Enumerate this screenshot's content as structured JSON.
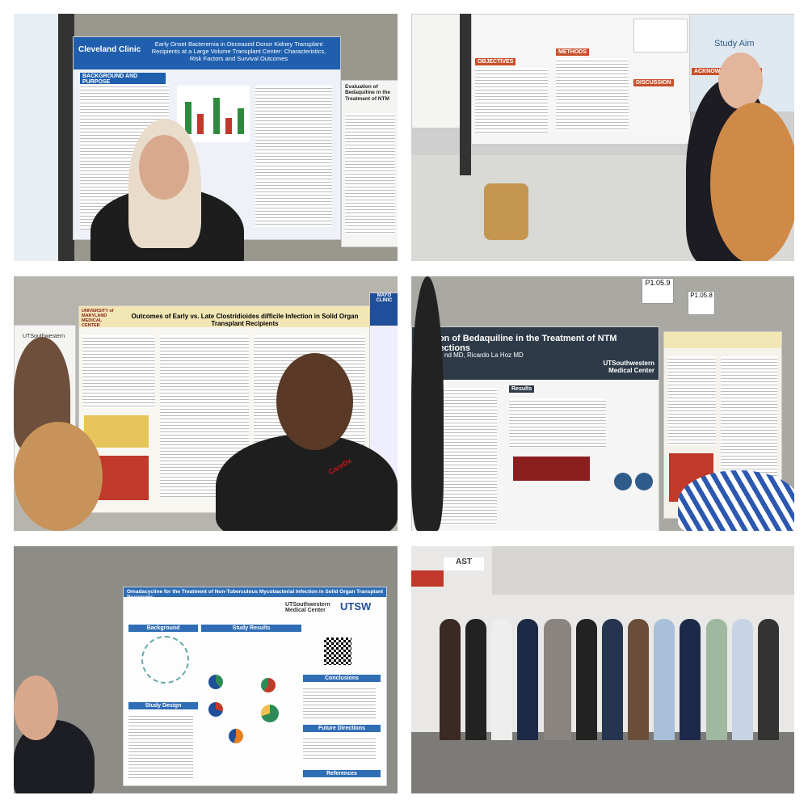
{
  "panels": [
    {
      "texts": {
        "brand": "Cleveland Clinic",
        "title": "Early Onset Bacteremia in Deceased Donor Kidney Transplant Recipients at a Large Volume Transplant Center: Characteristics, Risk Factors and Survival Outcomes",
        "section": "BACKGROUND AND PURPOSE",
        "side_title": "Evaluation of Bedaquiline in the Treatment of NTM"
      }
    },
    {
      "texts": {
        "objectives": "OBJECTIVES",
        "methods": "METHODS",
        "discussion": "DISCUSSION",
        "acknowledgements": "ACKNOWLEDGEMENTS",
        "study_aim": "Study Aim"
      }
    },
    {
      "texts": {
        "brand": "UNIVERSITY of MARYLAND MEDICAL CENTER",
        "title": "Outcomes of Early vs. Late Clostridioides difficile Infection in Solid Organ Transplant Recipients",
        "side_brand": "MAYO CLINIC",
        "left_brand": "UTSouthwestern",
        "lanyard": "CareDx"
      }
    },
    {
      "texts": {
        "tag1": "P1.05.9",
        "tag2": "P1.05.8",
        "title": "ction of Bedaquiline in the Treatment of NTM Infections",
        "authors": "nd MD, Ricardo La Hoz MD",
        "brand": "UTSouthwestern Medical Center",
        "results": "Results"
      }
    },
    {
      "texts": {
        "title": "Omadacycline for the Treatment of Non-Tuberculous Mycobacterial Infection in Solid Organ Transplant Recipients",
        "brand": "UTSouthwestern Medical Center",
        "logo": "UTSW",
        "background": "Background",
        "study_results": "Study Results",
        "study_design": "Study Design",
        "conclusions": "Conclusions",
        "future": "Future Directions",
        "references": "References"
      }
    },
    {
      "texts": {
        "sign": "AST"
      }
    }
  ]
}
